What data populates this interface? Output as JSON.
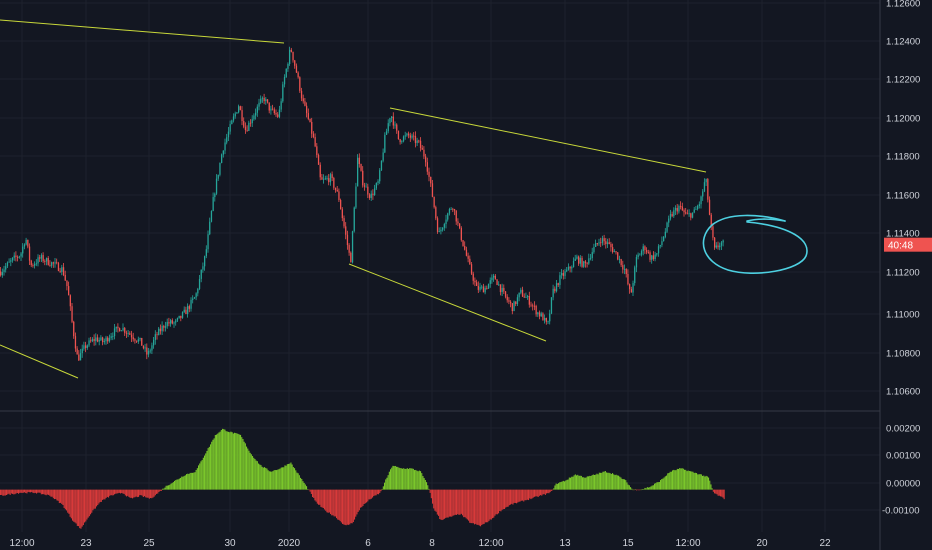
{
  "colors": {
    "background": "#131722",
    "grid": "#1e222d",
    "separator": "#363a45",
    "axis_text": "#d1d4dc",
    "candle_up": "#26a69a",
    "candle_down": "#ef5350",
    "trendline": "#c8d83a",
    "annotation": "#4dd0e1",
    "hist_positive": "#7bc72b",
    "hist_negative": "#d83a3a",
    "price_tag_bg": "#ef5350",
    "price_tag_text": "#ffffff"
  },
  "price_tag": {
    "label": "40:48",
    "price": 1.1135
  },
  "chart_data": [
    {
      "type": "candlestick",
      "title": "",
      "ylim": [
        1.1048,
        1.1263
      ],
      "y_ticks": [
        "1.12600",
        "1.12400",
        "1.12200",
        "1.12000",
        "1.11800",
        "1.11600",
        "1.11400",
        "1.11200",
        "1.11000",
        "1.10800",
        "1.10600"
      ],
      "x_ticks": [
        "12:00",
        "23",
        "25",
        "30",
        "2020",
        "6",
        "8",
        "12:00",
        "13",
        "15",
        "12:00",
        "20",
        "22"
      ],
      "price_path": [
        [
          0,
          1.1121
        ],
        [
          12,
          1.1127
        ],
        [
          20,
          1.113
        ],
        [
          25,
          1.1139
        ],
        [
          30,
          1.1124
        ],
        [
          40,
          1.1128
        ],
        [
          52,
          1.1125
        ],
        [
          62,
          1.1122
        ],
        [
          67,
          1.1112
        ],
        [
          72,
          1.1092
        ],
        [
          77,
          1.1075
        ],
        [
          85,
          1.1082
        ],
        [
          95,
          1.1086
        ],
        [
          103,
          1.1084
        ],
        [
          110,
          1.1088
        ],
        [
          120,
          1.1092
        ],
        [
          130,
          1.1088
        ],
        [
          140,
          1.1084
        ],
        [
          147,
          1.1077
        ],
        [
          155,
          1.1087
        ],
        [
          165,
          1.1094
        ],
        [
          175,
          1.1094
        ],
        [
          185,
          1.11
        ],
        [
          195,
          1.1108
        ],
        [
          205,
          1.113
        ],
        [
          213,
          1.116
        ],
        [
          222,
          1.1185
        ],
        [
          232,
          1.12
        ],
        [
          238,
          1.1208
        ],
        [
          245,
          1.1195
        ],
        [
          255,
          1.1205
        ],
        [
          263,
          1.1212
        ],
        [
          270,
          1.1205
        ],
        [
          278,
          1.1202
        ],
        [
          283,
          1.122
        ],
        [
          290,
          1.1238
        ],
        [
          296,
          1.1225
        ],
        [
          302,
          1.121
        ],
        [
          308,
          1.12
        ],
        [
          314,
          1.1188
        ],
        [
          320,
          1.1168
        ],
        [
          330,
          1.117
        ],
        [
          338,
          1.116
        ],
        [
          345,
          1.114
        ],
        [
          350,
          1.1126
        ],
        [
          357,
          1.118
        ],
        [
          362,
          1.1168
        ],
        [
          370,
          1.116
        ],
        [
          378,
          1.1168
        ],
        [
          384,
          1.119
        ],
        [
          390,
          1.1204
        ],
        [
          398,
          1.119
        ],
        [
          408,
          1.1192
        ],
        [
          418,
          1.1188
        ],
        [
          425,
          1.118
        ],
        [
          432,
          1.116
        ],
        [
          438,
          1.114
        ],
        [
          444,
          1.1148
        ],
        [
          452,
          1.1156
        ],
        [
          460,
          1.114
        ],
        [
          468,
          1.1125
        ],
        [
          476,
          1.1112
        ],
        [
          484,
          1.1112
        ],
        [
          494,
          1.1118
        ],
        [
          504,
          1.1108
        ],
        [
          512,
          1.1102
        ],
        [
          520,
          1.111
        ],
        [
          528,
          1.1106
        ],
        [
          536,
          1.11
        ],
        [
          542,
          1.1097
        ],
        [
          547,
          1.1092
        ],
        [
          552,
          1.111
        ],
        [
          560,
          1.1118
        ],
        [
          568,
          1.1122
        ],
        [
          576,
          1.1128
        ],
        [
          584,
          1.1124
        ],
        [
          592,
          1.1132
        ],
        [
          600,
          1.1138
        ],
        [
          608,
          1.1135
        ],
        [
          616,
          1.113
        ],
        [
          624,
          1.1122
        ],
        [
          630,
          1.1108
        ],
        [
          636,
          1.1128
        ],
        [
          644,
          1.1134
        ],
        [
          650,
          1.1128
        ],
        [
          656,
          1.113
        ],
        [
          662,
          1.1138
        ],
        [
          670,
          1.115
        ],
        [
          678,
          1.1155
        ],
        [
          686,
          1.115
        ],
        [
          694,
          1.1152
        ],
        [
          700,
          1.1158
        ],
        [
          705,
          1.117
        ],
        [
          710,
          1.1145
        ],
        [
          714,
          1.1132
        ],
        [
          720,
          1.1136
        ],
        [
          724,
          1.1135
        ]
      ]
    },
    {
      "type": "histogram",
      "title": "",
      "ylim": [
        -0.0014,
        0.0024
      ],
      "y_ticks": [
        "0.00200",
        "0.00100",
        "0.00000",
        "-0.00100"
      ],
      "values_path": [
        [
          0,
          -0.0002
        ],
        [
          20,
          -0.0001
        ],
        [
          35,
          -0.0001
        ],
        [
          50,
          -0.0002
        ],
        [
          62,
          -0.0005
        ],
        [
          72,
          -0.001
        ],
        [
          80,
          -0.0013
        ],
        [
          90,
          -0.0008
        ],
        [
          100,
          -0.0004
        ],
        [
          110,
          -0.0002
        ],
        [
          122,
          -0.0001
        ],
        [
          130,
          -0.0003
        ],
        [
          140,
          -0.0002
        ],
        [
          150,
          -0.0003
        ],
        [
          158,
          -0.0001
        ],
        [
          165,
          0.0001
        ],
        [
          175,
          0.0003
        ],
        [
          185,
          0.0005
        ],
        [
          195,
          0.0006
        ],
        [
          205,
          0.0012
        ],
        [
          215,
          0.0018
        ],
        [
          222,
          0.002
        ],
        [
          230,
          0.0019
        ],
        [
          240,
          0.0018
        ],
        [
          250,
          0.0012
        ],
        [
          260,
          0.0008
        ],
        [
          270,
          0.0006
        ],
        [
          280,
          0.0007
        ],
        [
          290,
          0.0009
        ],
        [
          300,
          0.0004
        ],
        [
          308,
          0.0
        ],
        [
          315,
          -0.0004
        ],
        [
          325,
          -0.0007
        ],
        [
          335,
          -0.0009
        ],
        [
          345,
          -0.0012
        ],
        [
          352,
          -0.0011
        ],
        [
          360,
          -0.0006
        ],
        [
          370,
          -0.0003
        ],
        [
          380,
          -0.0001
        ],
        [
          385,
          0.0003
        ],
        [
          392,
          0.0008
        ],
        [
          400,
          0.0007
        ],
        [
          410,
          0.0007
        ],
        [
          420,
          0.0006
        ],
        [
          428,
          0.0001
        ],
        [
          433,
          -0.0006
        ],
        [
          440,
          -0.001
        ],
        [
          450,
          -0.0009
        ],
        [
          460,
          -0.0008
        ],
        [
          470,
          -0.0011
        ],
        [
          480,
          -0.0012
        ],
        [
          490,
          -0.001
        ],
        [
          500,
          -0.0007
        ],
        [
          510,
          -0.0005
        ],
        [
          520,
          -0.0004
        ],
        [
          530,
          -0.0003
        ],
        [
          540,
          -0.0002
        ],
        [
          550,
          -0.0001
        ],
        [
          556,
          0.0002
        ],
        [
          565,
          0.0003
        ],
        [
          575,
          0.0005
        ],
        [
          585,
          0.0004
        ],
        [
          595,
          0.0005
        ],
        [
          605,
          0.0006
        ],
        [
          615,
          0.0005
        ],
        [
          625,
          0.0003
        ],
        [
          632,
          0.0
        ],
        [
          640,
          0.0
        ],
        [
          650,
          0.0001
        ],
        [
          660,
          0.0003
        ],
        [
          670,
          0.0006
        ],
        [
          680,
          0.0007
        ],
        [
          690,
          0.0006
        ],
        [
          700,
          0.0005
        ],
        [
          708,
          0.0004
        ],
        [
          713,
          -0.0001
        ],
        [
          718,
          -0.0002
        ],
        [
          724,
          -0.0003
        ]
      ]
    }
  ]
}
